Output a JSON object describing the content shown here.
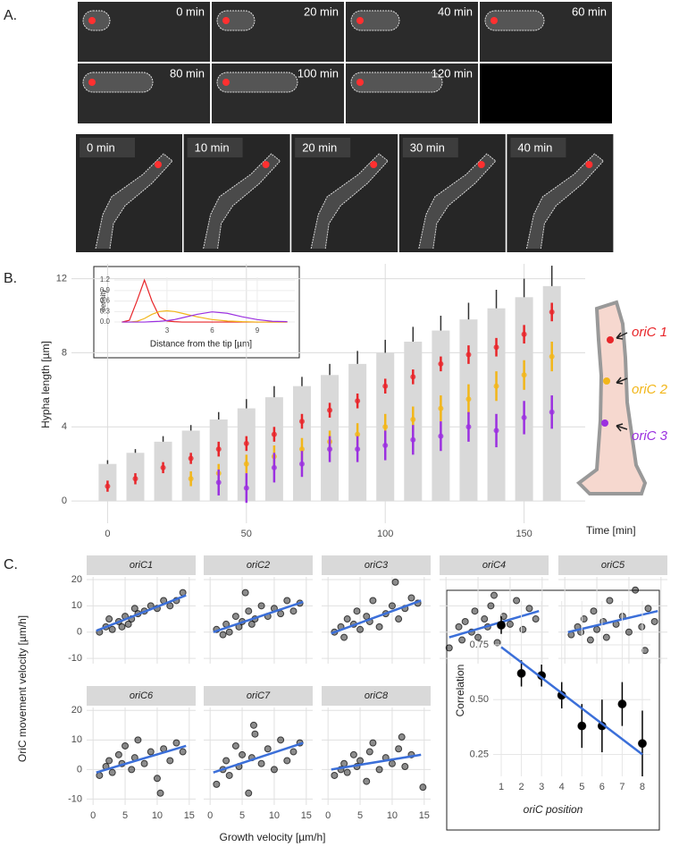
{
  "panel_labels": [
    "A.",
    "B.",
    "C."
  ],
  "panel_a": {
    "row1": [
      "0 min",
      "20 min",
      "40 min",
      "60 min",
      "80 min",
      "100 min",
      "120 min"
    ],
    "row2": [
      "0 min",
      "10 min",
      "20 min",
      "30 min",
      "40 min"
    ]
  },
  "panel_c": {
    "ylabel": "OriC movement velocity [µm/h]",
    "xlabel": "Growth velocity [µm/h]"
  },
  "chart_data": [
    {
      "type": "bar",
      "xlabel": "Time [min]",
      "ylabel": "Hypha length [µm]",
      "x": [
        0,
        10,
        20,
        30,
        40,
        50,
        60,
        70,
        80,
        90,
        100,
        110,
        120,
        130,
        140,
        150,
        160
      ],
      "values": [
        2.0,
        2.6,
        3.2,
        3.8,
        4.4,
        5.0,
        5.6,
        6.2,
        6.8,
        7.4,
        8.0,
        8.6,
        9.2,
        9.8,
        10.4,
        11.0,
        11.6
      ],
      "errors": [
        0.2,
        0.2,
        0.3,
        0.3,
        0.4,
        0.5,
        0.6,
        0.5,
        0.6,
        0.7,
        0.7,
        0.8,
        0.8,
        0.9,
        1.0,
        1.0,
        1.1
      ],
      "color": "#d9d9d9",
      "series": [
        {
          "name": "oriC 1",
          "color": "#e8262a",
          "values": [
            0.8,
            1.2,
            1.8,
            2.3,
            2.8,
            3.1,
            3.6,
            4.3,
            4.9,
            5.4,
            6.2,
            6.7,
            7.4,
            7.9,
            8.3,
            9.0,
            10.2
          ],
          "errors": [
            0.3,
            0.3,
            0.3,
            0.3,
            0.4,
            0.4,
            0.4,
            0.4,
            0.4,
            0.4,
            0.4,
            0.4,
            0.4,
            0.5,
            0.5,
            0.5,
            0.5
          ]
        },
        {
          "name": "oriC 2",
          "color": "#f2b619",
          "values": [
            null,
            null,
            null,
            1.2,
            1.5,
            2.0,
            2.4,
            2.8,
            3.2,
            3.6,
            4.0,
            4.4,
            5.0,
            5.5,
            6.2,
            6.8,
            7.8
          ],
          "errors": [
            null,
            null,
            null,
            0.4,
            0.5,
            0.5,
            0.6,
            0.6,
            0.6,
            0.6,
            0.7,
            0.7,
            0.7,
            0.8,
            0.8,
            0.8,
            0.8
          ]
        },
        {
          "name": "oriC 3",
          "color": "#9b30e0",
          "values": [
            null,
            null,
            null,
            null,
            1.0,
            0.7,
            1.8,
            2.0,
            2.8,
            2.8,
            3.0,
            3.3,
            3.5,
            4.0,
            3.8,
            4.5,
            4.8
          ],
          "errors": [
            null,
            null,
            null,
            null,
            0.7,
            0.8,
            0.8,
            0.7,
            0.7,
            0.7,
            0.8,
            0.8,
            0.8,
            0.8,
            0.9,
            0.9,
            0.9
          ]
        }
      ],
      "xlim": [
        -13,
        172
      ],
      "ylim": [
        -1.2,
        12.8
      ],
      "xticks": [
        0,
        50,
        100,
        150
      ],
      "yticks": [
        0,
        4,
        8,
        12
      ],
      "grid": true
    },
    {
      "type": "line",
      "xlabel": "Distance from the tip [µm]",
      "ylabel": "density",
      "x": [
        0,
        0.5,
        1,
        1.5,
        2,
        2.5,
        3,
        3.5,
        4,
        5,
        6,
        7,
        8,
        9,
        10,
        11
      ],
      "series": [
        {
          "color": "#e8262a",
          "values": [
            0,
            0.05,
            0.6,
            1.2,
            0.6,
            0.15,
            0.03,
            0.01,
            0,
            0,
            0,
            0,
            0,
            0,
            0,
            0
          ]
        },
        {
          "color": "#f2b619",
          "values": [
            0,
            0,
            0.02,
            0.1,
            0.22,
            0.3,
            0.32,
            0.3,
            0.25,
            0.15,
            0.07,
            0.03,
            0.01,
            0,
            0,
            0
          ]
        },
        {
          "color": "#9b30e0",
          "values": [
            0,
            0,
            0,
            0,
            0.01,
            0.02,
            0.04,
            0.07,
            0.12,
            0.22,
            0.29,
            0.25,
            0.15,
            0.07,
            0.02,
            0.01
          ]
        }
      ],
      "xlim": [
        -0.5,
        11.5
      ],
      "ylim": [
        -0.05,
        1.28
      ],
      "xticks": [
        3,
        6,
        9
      ],
      "yticks": [
        {
          "value": 0,
          "label": "0.0"
        },
        0.3,
        0.6,
        0.9,
        1.2
      ],
      "grid": true
    },
    {
      "type": "scatter",
      "title": "oriC1",
      "color": "#000000",
      "fit_color": "#3b6fd9",
      "x": [
        1,
        2,
        2.5,
        3,
        4,
        4.5,
        5,
        6,
        6.5,
        7,
        8,
        9,
        10,
        11,
        12,
        13,
        14,
        5.5
      ],
      "values": [
        0,
        2,
        5,
        1,
        4,
        2,
        6,
        5,
        9,
        7,
        8,
        10,
        9,
        12,
        10,
        12,
        15,
        3
      ],
      "fit": {
        "x": [
          0.5,
          14.5
        ],
        "y": [
          0.5,
          14
        ]
      },
      "xlim": [
        -1,
        16
      ],
      "ylim": [
        -12,
        21
      ],
      "xticks": [
        0,
        5,
        10,
        15
      ],
      "yticks": [
        -10,
        0,
        10,
        20
      ],
      "grid": true
    },
    {
      "type": "scatter",
      "title": "oriC2",
      "color": "#000000",
      "fit_color": "#3b6fd9",
      "x": [
        1,
        2,
        2.5,
        3,
        4,
        4.5,
        5,
        6,
        6.5,
        7,
        8,
        9,
        10,
        11,
        12,
        13,
        14,
        5.5
      ],
      "values": [
        1,
        -1,
        3,
        0,
        6,
        2,
        4,
        8,
        3,
        5,
        10,
        6,
        9,
        7,
        12,
        8,
        11,
        15
      ],
      "fit": {
        "x": [
          0.5,
          14.5
        ],
        "y": [
          0,
          11.5
        ]
      },
      "xlim": [
        -1,
        16
      ],
      "ylim": [
        -12,
        21
      ],
      "xticks": [
        0,
        5,
        10,
        15
      ],
      "yticks": [
        -10,
        0,
        10,
        20
      ],
      "grid": true
    },
    {
      "type": "scatter",
      "title": "oriC3",
      "color": "#000000",
      "fit_color": "#3b6fd9",
      "x": [
        1,
        2,
        2.5,
        3,
        4,
        4.5,
        5,
        6,
        6.5,
        7,
        8,
        9,
        10,
        11,
        12,
        13,
        14,
        10.5
      ],
      "values": [
        0,
        2,
        -2,
        5,
        3,
        8,
        1,
        6,
        4,
        12,
        2,
        7,
        10,
        5,
        9,
        13,
        11,
        19
      ],
      "fit": {
        "x": [
          0.5,
          14.5
        ],
        "y": [
          -0.5,
          12
        ]
      },
      "xlim": [
        -1,
        16
      ],
      "ylim": [
        -12,
        21
      ],
      "xticks": [
        0,
        5,
        10,
        15
      ],
      "yticks": [
        -10,
        0,
        10,
        20
      ],
      "grid": true
    },
    {
      "type": "scatter",
      "title": "oriC4",
      "color": "#000000",
      "fit_color": "#3b6fd9",
      "x": [
        0.5,
        2,
        2.5,
        3,
        4,
        4.5,
        5,
        6,
        6.5,
        7,
        8,
        9,
        10,
        11,
        12,
        13,
        14,
        7.5
      ],
      "values": [
        -6,
        2,
        -3,
        4,
        0,
        8,
        -2,
        5,
        2,
        10,
        -4,
        6,
        3,
        12,
        1,
        9,
        5,
        14
      ],
      "fit": {
        "x": [
          0.5,
          14.5
        ],
        "y": [
          -2,
          8
        ]
      },
      "xlim": [
        -1,
        16
      ],
      "ylim": [
        -12,
        21
      ],
      "xticks": [
        0,
        5,
        10,
        15
      ],
      "yticks": [
        -10,
        0,
        10,
        20
      ],
      "grid": true
    },
    {
      "type": "scatter",
      "title": "oriC5",
      "color": "#000000",
      "fit_color": "#3b6fd9",
      "x": [
        1,
        2,
        2.5,
        3,
        4,
        4.5,
        5,
        6,
        6.5,
        7,
        8,
        9,
        10,
        11,
        12,
        13,
        14,
        12.5
      ],
      "values": [
        -1,
        2,
        0,
        5,
        -3,
        8,
        1,
        4,
        -2,
        12,
        3,
        6,
        0,
        16,
        2,
        9,
        4,
        -7
      ],
      "fit": {
        "x": [
          0.5,
          14.5
        ],
        "y": [
          0,
          8
        ]
      },
      "xlim": [
        -1,
        16
      ],
      "ylim": [
        -12,
        21
      ],
      "xticks": [
        0,
        5,
        10,
        15
      ],
      "yticks": [
        -10,
        0,
        10,
        20
      ],
      "grid": true
    },
    {
      "type": "scatter",
      "title": "oriC6",
      "color": "#000000",
      "fit_color": "#3b6fd9",
      "x": [
        1,
        2,
        2.5,
        3,
        4,
        4.5,
        5,
        6,
        6.5,
        7,
        8,
        9,
        10,
        11,
        12,
        13,
        14,
        10.5
      ],
      "values": [
        -2,
        1,
        3,
        -1,
        5,
        2,
        8,
        0,
        4,
        10,
        2,
        6,
        -3,
        7,
        3,
        9,
        6,
        -8
      ],
      "fit": {
        "x": [
          0.5,
          14.5
        ],
        "y": [
          -1,
          8
        ]
      },
      "xlim": [
        -1,
        16
      ],
      "ylim": [
        -12,
        21
      ],
      "xticks": [
        0,
        5,
        10,
        15
      ],
      "yticks": [
        -10,
        0,
        10,
        20
      ],
      "grid": true
    },
    {
      "type": "scatter",
      "title": "oriC7",
      "color": "#000000",
      "fit_color": "#3b6fd9",
      "x": [
        1,
        2,
        2.5,
        3,
        4,
        4.5,
        5,
        6,
        6.5,
        7,
        8,
        9,
        10,
        11,
        12,
        13,
        14,
        6.8
      ],
      "values": [
        -5,
        0,
        3,
        -2,
        8,
        1,
        5,
        -8,
        4,
        12,
        2,
        7,
        0,
        10,
        3,
        6,
        9,
        15
      ],
      "fit": {
        "x": [
          0.5,
          14.5
        ],
        "y": [
          -1,
          9
        ]
      },
      "xlim": [
        -1,
        16
      ],
      "ylim": [
        -12,
        21
      ],
      "xticks": [
        0,
        5,
        10,
        15
      ],
      "yticks": [
        -10,
        0,
        10,
        20
      ],
      "grid": true
    },
    {
      "type": "scatter",
      "title": "oriC8",
      "color": "#000000",
      "fit_color": "#3b6fd9",
      "x": [
        1,
        2,
        2.5,
        3,
        4,
        4.5,
        5,
        6,
        6.5,
        7,
        8,
        9,
        10,
        11,
        12,
        13,
        11.5,
        14.8
      ],
      "values": [
        -2,
        0,
        2,
        -1,
        5,
        1,
        3,
        -4,
        6,
        9,
        0,
        4,
        2,
        7,
        1,
        5,
        11,
        -6
      ],
      "fit": {
        "x": [
          0.5,
          14.5
        ],
        "y": [
          0,
          5
        ]
      },
      "xlim": [
        -1,
        16
      ],
      "ylim": [
        -12,
        21
      ],
      "xticks": [
        0,
        5,
        10,
        15
      ],
      "yticks": [
        -10,
        0,
        10,
        20
      ],
      "grid": true
    },
    {
      "type": "scatter",
      "xlabel": "oriC position",
      "ylabel": "Correlation",
      "color": "#000000",
      "fit_color": "#3b6fd9",
      "x": [
        1,
        2,
        3,
        4,
        5,
        6,
        7,
        8
      ],
      "values": [
        0.84,
        0.62,
        0.61,
        0.52,
        0.38,
        0.38,
        0.48,
        0.3
      ],
      "errors": [
        0.04,
        0.06,
        0.05,
        0.06,
        0.1,
        0.12,
        0.1,
        0.15
      ],
      "fit": {
        "x": [
          1,
          8
        ],
        "y": [
          0.74,
          0.25
        ]
      },
      "xlim": [
        0.6,
        8.4
      ],
      "ylim": [
        0.15,
        0.95
      ],
      "xticks": [
        1,
        2,
        3,
        4,
        5,
        6,
        7,
        8
      ],
      "yticks": [
        0.25,
        {
          "value": 0.5,
          "label": "0.50"
        },
        0.75
      ],
      "grid": true
    }
  ]
}
